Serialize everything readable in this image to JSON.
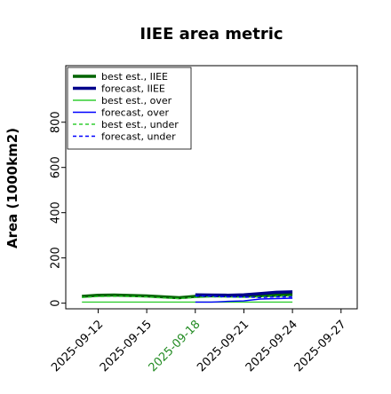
{
  "chart_data": {
    "type": "line",
    "title": "IIEE area metric",
    "xlabel": "",
    "ylabel": "Area (1000km2)",
    "x_ticks": [
      "2025-09-12",
      "2025-09-15",
      "2025-09-18",
      "2025-09-21",
      "2025-09-24",
      "2025-09-27"
    ],
    "x_tick_colors": [
      "#000000",
      "#000000",
      "#228B22",
      "#000000",
      "#000000",
      "#000000"
    ],
    "xlim": [
      "2025-09-10",
      "2025-09-28"
    ],
    "y_ticks": [
      "0",
      "200",
      "400",
      "600",
      "800"
    ],
    "ylim": [
      -25,
      1050
    ],
    "grid": false,
    "legend_position": "top-left",
    "series": [
      {
        "name": "best est., IIEE",
        "color": "#006400",
        "style": "solid-thick",
        "x": [
          "2025-09-11",
          "2025-09-12",
          "2025-09-13",
          "2025-09-14",
          "2025-09-15",
          "2025-09-16",
          "2025-09-17",
          "2025-09-18",
          "2025-09-19",
          "2025-09-20",
          "2025-09-21",
          "2025-09-22",
          "2025-09-23",
          "2025-09-24"
        ],
        "y": [
          30,
          35,
          36,
          34,
          32,
          28,
          24,
          30,
          33,
          32,
          31,
          33,
          35,
          38
        ]
      },
      {
        "name": "forecast, IIEE",
        "color": "#00008B",
        "style": "solid-thick",
        "x": [
          "2025-09-18",
          "2025-09-19",
          "2025-09-20",
          "2025-09-21",
          "2025-09-22",
          "2025-09-23",
          "2025-09-24"
        ],
        "y": [
          37,
          36,
          35,
          37,
          42,
          48,
          50
        ]
      },
      {
        "name": "best est., over",
        "color": "#32CD32",
        "style": "solid",
        "x": [
          "2025-09-11",
          "2025-09-12",
          "2025-09-13",
          "2025-09-14",
          "2025-09-15",
          "2025-09-16",
          "2025-09-17",
          "2025-09-18",
          "2025-09-19",
          "2025-09-20",
          "2025-09-21",
          "2025-09-22",
          "2025-09-23",
          "2025-09-24"
        ],
        "y": [
          5,
          5,
          5,
          5,
          5,
          5,
          5,
          5,
          5,
          5,
          5,
          5,
          5,
          5
        ]
      },
      {
        "name": "forecast, over",
        "color": "#0000FF",
        "style": "solid",
        "x": [
          "2025-09-18",
          "2025-09-19",
          "2025-09-20",
          "2025-09-21",
          "2025-09-22",
          "2025-09-23",
          "2025-09-24"
        ],
        "y": [
          5,
          5,
          8,
          10,
          18,
          20,
          22
        ]
      },
      {
        "name": "best est., under",
        "color": "#32CD32",
        "style": "dashed",
        "x": [
          "2025-09-11",
          "2025-09-12",
          "2025-09-13",
          "2025-09-14",
          "2025-09-15",
          "2025-09-16",
          "2025-09-17",
          "2025-09-18",
          "2025-09-19",
          "2025-09-20",
          "2025-09-21",
          "2025-09-22",
          "2025-09-23",
          "2025-09-24"
        ],
        "y": [
          25,
          29,
          30,
          29,
          27,
          23,
          20,
          25,
          28,
          27,
          26,
          28,
          30,
          32
        ]
      },
      {
        "name": "forecast, under",
        "color": "#0000FF",
        "style": "dashed",
        "x": [
          "2025-09-18",
          "2025-09-19",
          "2025-09-20",
          "2025-09-21",
          "2025-09-22",
          "2025-09-23",
          "2025-09-24"
        ],
        "y": [
          32,
          31,
          28,
          27,
          25,
          28,
          28
        ]
      }
    ]
  }
}
